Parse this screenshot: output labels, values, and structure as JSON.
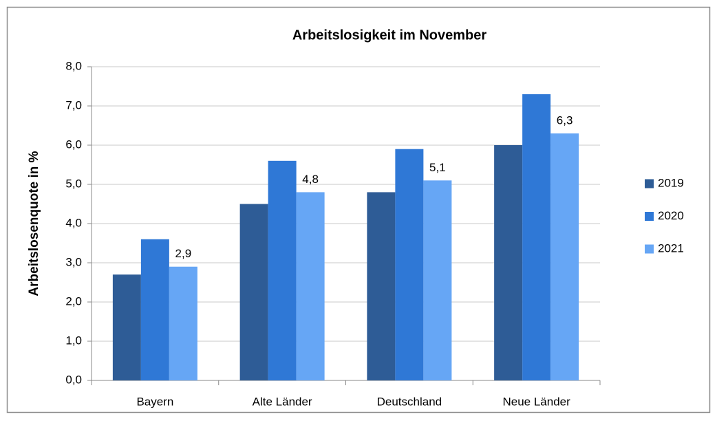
{
  "chart_data": {
    "type": "bar",
    "title": "Arbeitslosigkeit im November",
    "y_label": "Arbeitslosenquote in %",
    "categories": [
      "Bayern",
      "Alte Länder",
      "Deutschland",
      "Neue Länder"
    ],
    "series": [
      {
        "name": "2019",
        "color": "#2e5c96",
        "values": [
          2.7,
          4.5,
          4.8,
          6.0
        ]
      },
      {
        "name": "2020",
        "color": "#2f78d6",
        "values": [
          3.6,
          5.6,
          5.9,
          7.3
        ]
      },
      {
        "name": "2021",
        "color": "#66a6f5",
        "values": [
          2.9,
          4.8,
          5.1,
          6.3
        ],
        "value_labels": [
          "2,9",
          "4,8",
          "5,1",
          "6,3"
        ]
      }
    ],
    "ylim": [
      0,
      8
    ],
    "yticks": [
      {
        "value": 0,
        "label": "0,0"
      },
      {
        "value": 1,
        "label": "1,0"
      },
      {
        "value": 2,
        "label": "2,0"
      },
      {
        "value": 3,
        "label": "3,0"
      },
      {
        "value": 4,
        "label": "4,0"
      },
      {
        "value": 5,
        "label": "5,0"
      },
      {
        "value": 6,
        "label": "6,0"
      },
      {
        "value": 7,
        "label": "7,0"
      },
      {
        "value": 8,
        "label": "8,0"
      }
    ],
    "grid": true,
    "legend": "right"
  }
}
